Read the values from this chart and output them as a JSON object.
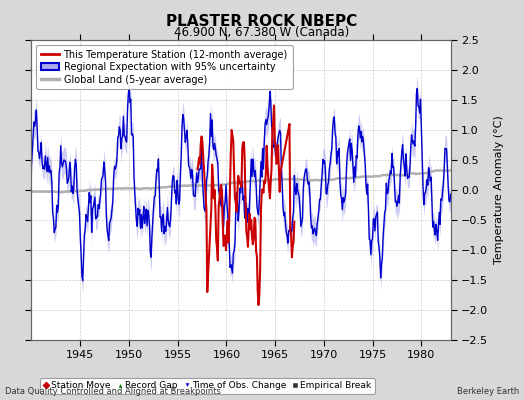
{
  "title": "PLASTER ROCK NBEPC",
  "subtitle": "46.900 N, 67.380 W (Canada)",
  "ylabel": "Temperature Anomaly (°C)",
  "xlabel_left": "Data Quality Controlled and Aligned at Breakpoints",
  "xlabel_right": "Berkeley Earth",
  "ylim": [
    -2.5,
    2.5
  ],
  "xlim": [
    1940,
    1983
  ],
  "xticks": [
    1945,
    1950,
    1955,
    1960,
    1965,
    1970,
    1975,
    1980
  ],
  "yticks": [
    -2.5,
    -2,
    -1.5,
    -1,
    -0.5,
    0,
    0.5,
    1,
    1.5,
    2,
    2.5
  ],
  "background_color": "#d8d8d8",
  "plot_bg_color": "#ffffff",
  "grid_color": "#cccccc",
  "regional_line_color": "#0000cc",
  "regional_fill_color": "#aaaaee",
  "station_line_color": "#cc0000",
  "global_line_color": "#b0b0b0",
  "legend_items": [
    {
      "label": "This Temperature Station (12-month average)",
      "color": "#cc0000",
      "lw": 2
    },
    {
      "label": "Regional Expectation with 95% uncertainty",
      "color": "#0000cc",
      "fill": "#aaaaee"
    },
    {
      "label": "Global Land (5-year average)",
      "color": "#b0b0b0",
      "lw": 2
    }
  ],
  "bottom_legend": [
    {
      "label": "Station Move",
      "marker": "D",
      "color": "#cc0000"
    },
    {
      "label": "Record Gap",
      "marker": "^",
      "color": "#008800"
    },
    {
      "label": "Time of Obs. Change",
      "marker": "v",
      "color": "#0000cc"
    },
    {
      "label": "Empirical Break",
      "marker": "s",
      "color": "#333333"
    }
  ]
}
